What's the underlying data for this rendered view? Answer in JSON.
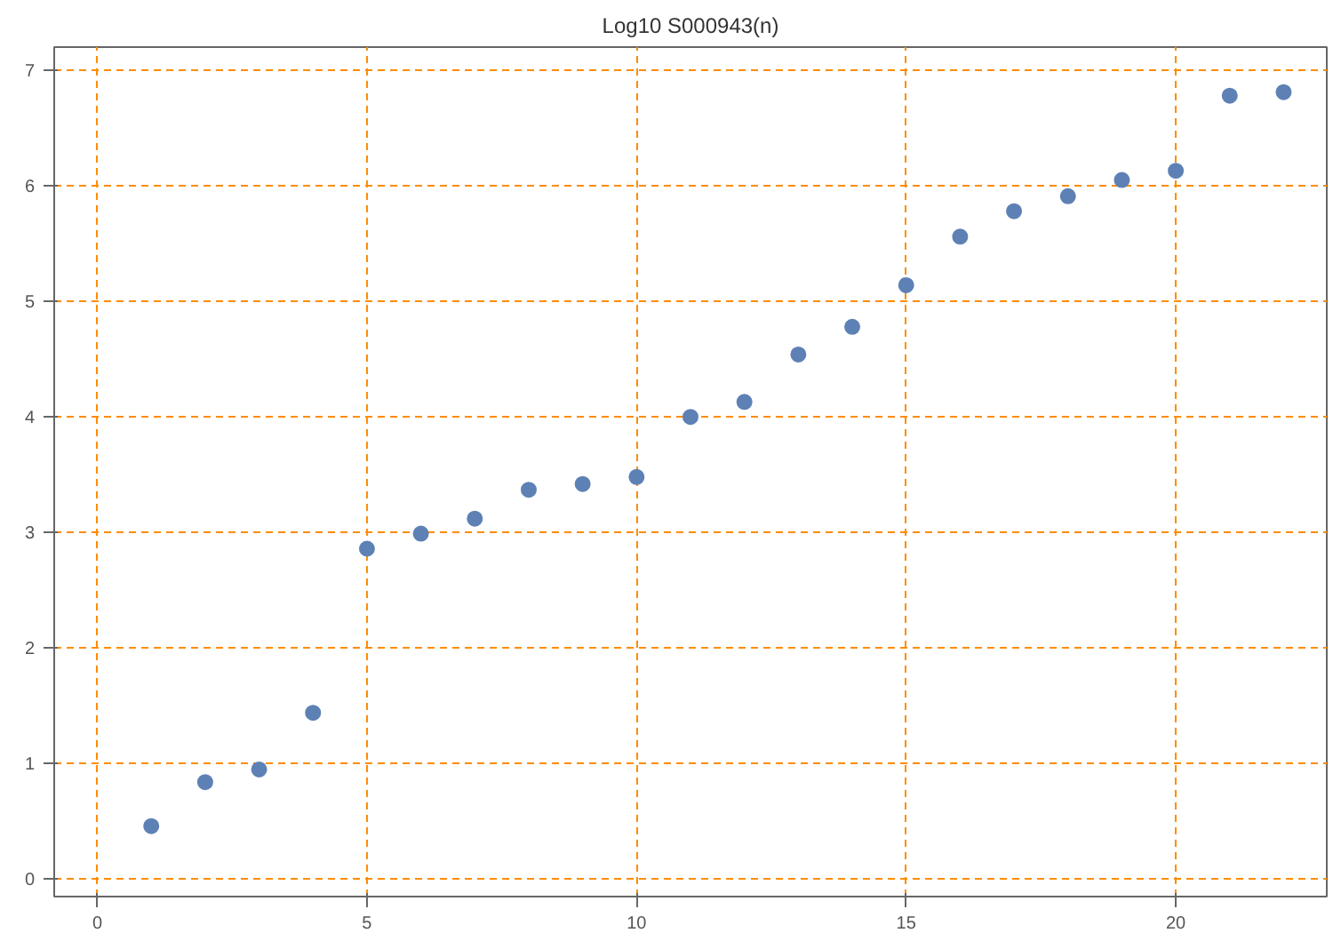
{
  "chart_data": {
    "type": "scatter",
    "title": "Log10 S000943(n)",
    "x": [
      1,
      2,
      3,
      4,
      5,
      6,
      7,
      8,
      9,
      10,
      11,
      12,
      13,
      14,
      15,
      16,
      17,
      18,
      19,
      20,
      21,
      22
    ],
    "series": [
      {
        "color": "#5e81b5",
        "values": [
          0.46,
          0.84,
          0.95,
          1.44,
          2.86,
          2.99,
          3.12,
          3.37,
          3.42,
          3.48,
          4.0,
          4.13,
          4.54,
          4.78,
          5.14,
          5.56,
          5.78,
          5.91,
          6.05,
          6.13,
          6.78,
          6.81
        ]
      }
    ],
    "xlim": [
      -0.8,
      22.8
    ],
    "ylim": [
      -0.15,
      7.2
    ],
    "xticks": [
      0,
      5,
      10,
      15,
      20
    ],
    "yticks": [
      0,
      1,
      2,
      3,
      4,
      5,
      6,
      7
    ],
    "grid": true,
    "marker": "circle"
  }
}
